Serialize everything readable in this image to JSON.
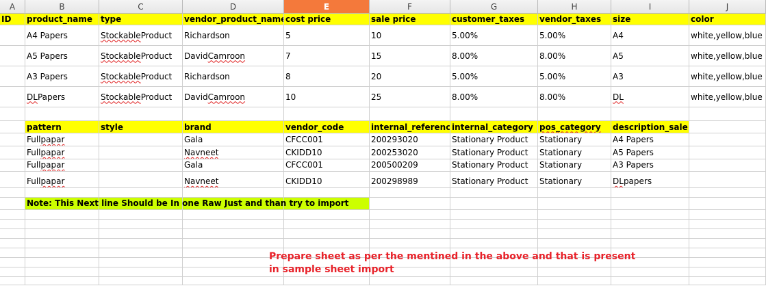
{
  "columns": [
    "A",
    "B",
    "C",
    "D",
    "E",
    "F",
    "G",
    "H",
    "I",
    "J"
  ],
  "selected_column": "E",
  "table1": {
    "headers": [
      "ID",
      "product_name",
      "type",
      "vendor_product_name",
      "cost price",
      "sale price",
      "customer_taxes",
      "vendor_taxes",
      "size",
      "color"
    ],
    "rows": [
      [
        "",
        "A4 Papers",
        "Stockable Product",
        "Richardson",
        "5",
        "10",
        "5.00%",
        "5.00%",
        "A4",
        "white,yellow,blue"
      ],
      [
        "",
        "A5 Papers",
        "Stockable Product",
        "David Camroon",
        "7",
        "15",
        "8.00%",
        "8.00%",
        "A5",
        "white,yellow,blue"
      ],
      [
        "",
        "A3 Papers",
        "Stockable Product",
        "Richardson",
        "8",
        "20",
        "5.00%",
        "5.00%",
        "A3",
        "white,yellow,blue"
      ],
      [
        "",
        "DL Papers",
        "Stockable Product",
        "David Camroon",
        "10",
        "25",
        "8.00%",
        "8.00%",
        "DL",
        "white,yellow,blue"
      ]
    ]
  },
  "table2": {
    "headers": [
      "",
      "pattern",
      "style",
      "brand",
      "vendor_code",
      "internal_reference",
      "internal_category",
      "pos_category",
      "description_sale",
      ""
    ],
    "rows": [
      [
        "",
        "Full papar",
        "",
        "Gala",
        "CFCC001",
        "200293020",
        "Stationary Product",
        "Stationary",
        "A4 Papers",
        ""
      ],
      [
        "",
        "Full papar",
        "",
        "Navneet",
        "CKIDD10",
        "200253020",
        "Stationary Product",
        "Stationary",
        "A5 Papers",
        ""
      ],
      [
        "",
        "Full papar",
        "",
        "Gala",
        "CFCC001",
        "200500209",
        "Stationary Product",
        "Stationary",
        "A3 Papers",
        ""
      ],
      [
        "",
        "Full papar",
        "",
        "Navneet",
        "CKIDD10",
        "200298989",
        "Stationary Product",
        "Stationary",
        "DL papers",
        ""
      ]
    ]
  },
  "note": "Note: This Next line Should be In one Raw Just and than try to import",
  "red_note": {
    "line1": "Prepare sheet as per the mentined in the above and that is present",
    "line2": "in  sample sheet import"
  },
  "colors": {
    "header_fill": "#ffff00",
    "note_fill": "#ccff00",
    "selected_column": "#f4793b",
    "red_text": "#e8222a"
  }
}
